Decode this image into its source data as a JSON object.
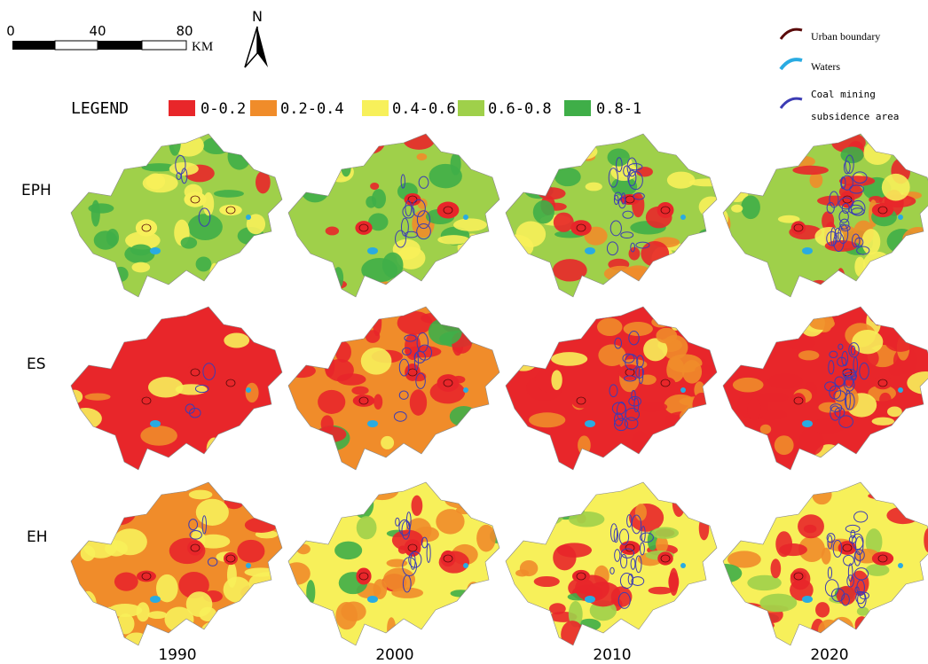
{
  "scale_bar": {
    "ticks": [
      0,
      40,
      80
    ],
    "unit": "KM"
  },
  "north_arrow": "N",
  "legend": {
    "title": "LEGEND",
    "items": [
      "0-0.2",
      "0.2-0.4",
      "0.4-0.6",
      "0.6-0.8",
      "0.8-1"
    ]
  },
  "overlay_legend": {
    "items": [
      "Urban boundary",
      "Waters",
      "Coal mining",
      "subsidence area"
    ]
  },
  "rows": [
    "EPH",
    "ES",
    "EH"
  ],
  "columns": [
    "1990",
    "2000",
    "2010",
    "2020"
  ]
}
